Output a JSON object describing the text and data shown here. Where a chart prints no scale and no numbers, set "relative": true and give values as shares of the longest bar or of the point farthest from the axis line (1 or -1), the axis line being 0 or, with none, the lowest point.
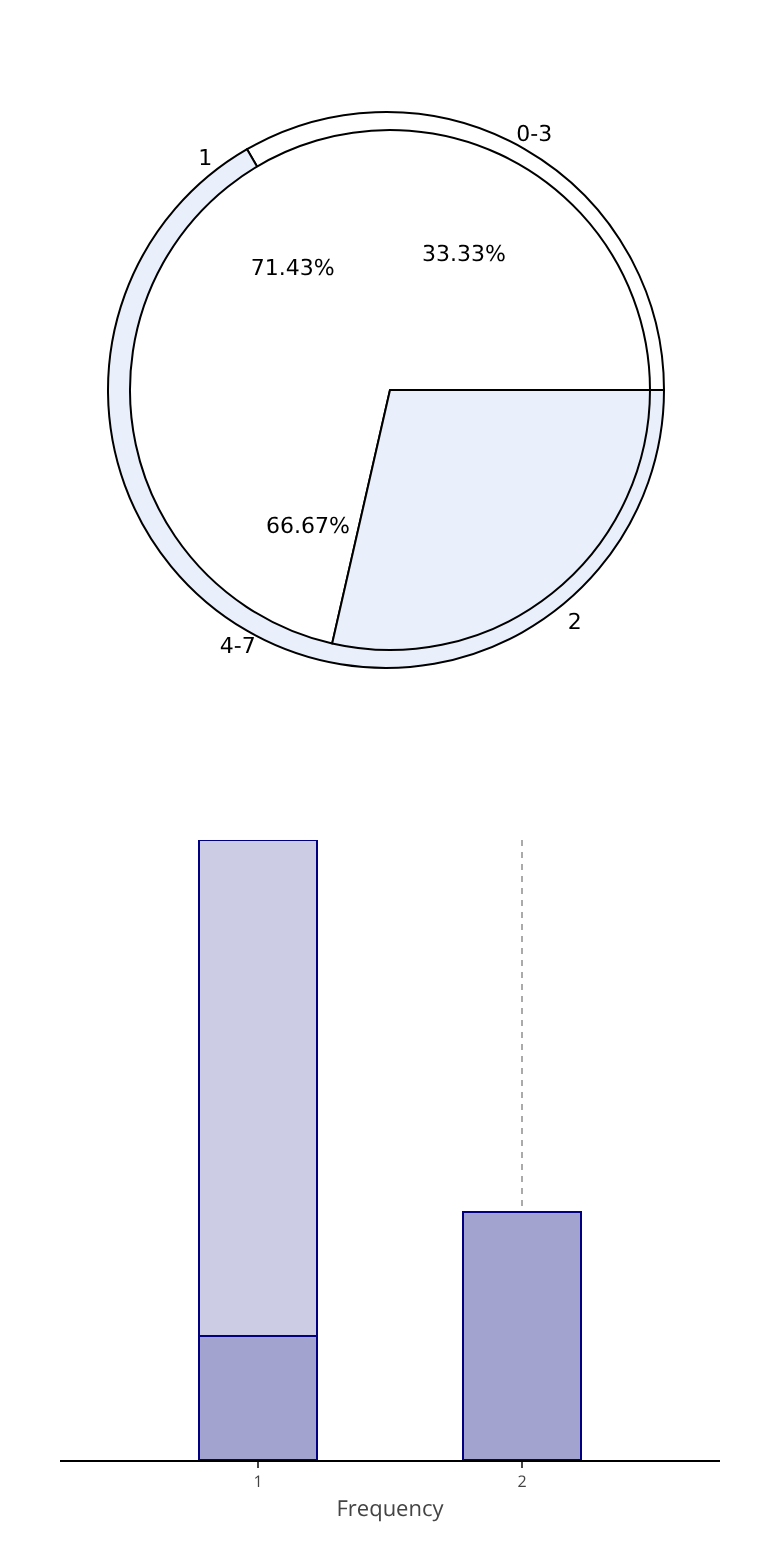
{
  "chart_data": [
    {
      "type": "pie",
      "categories": [
        "1",
        "2"
      ],
      "values": [
        71.43,
        28.57
      ],
      "colors": [
        "#ffffff",
        "#eaf0fb"
      ],
      "value_labels": [
        "71.43%",
        null
      ]
    },
    {
      "type": "pie",
      "categories": [
        "0-3",
        "4-7"
      ],
      "values": [
        33.33,
        66.67
      ],
      "colors": [
        "#ffffff",
        "#eaf0fb"
      ],
      "value_labels": [
        "33.33%",
        "66.67%"
      ]
    },
    {
      "type": "bar",
      "stacked": true,
      "relative": true,
      "categories": [
        "1",
        "2"
      ],
      "xlabel": "Frequency",
      "grid": "x",
      "series": [
        {
          "color": "#a3a3d0",
          "values": [
            0.2,
            0.4
          ]
        },
        {
          "color": "#cccce4",
          "values": [
            0.8,
            null
          ]
        }
      ]
    }
  ]
}
